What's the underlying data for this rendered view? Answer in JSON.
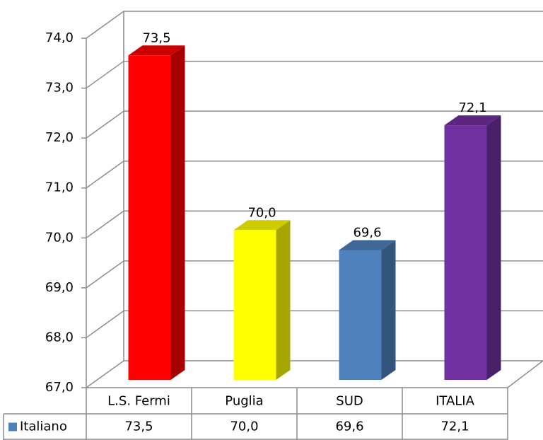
{
  "chart_data": {
    "type": "bar3d",
    "categories": [
      "L.S. Fermi",
      "Puglia",
      "SUD",
      "ITALIA"
    ],
    "series": [
      {
        "name": "Italiano",
        "color": "#4f81bd",
        "values": [
          73.5,
          70.0,
          69.6,
          72.1
        ],
        "value_labels": [
          "73,5",
          "70,0",
          "69,6",
          "72,1"
        ],
        "colors": [
          "#ff0000",
          "#ffff00",
          "#4f81bd",
          "#7030a0"
        ]
      }
    ],
    "ylim": [
      67,
      74
    ],
    "yticks": [
      {
        "value": 67,
        "label": "67,0"
      },
      {
        "value": 68,
        "label": "68,0"
      },
      {
        "value": 69,
        "label": "69,0"
      },
      {
        "value": 70,
        "label": "70,0"
      },
      {
        "value": 71,
        "label": "71,0"
      },
      {
        "value": 72,
        "label": "72,0"
      },
      {
        "value": 73,
        "label": "73,0"
      },
      {
        "value": 74,
        "label": "74,0"
      }
    ],
    "grid": true
  }
}
